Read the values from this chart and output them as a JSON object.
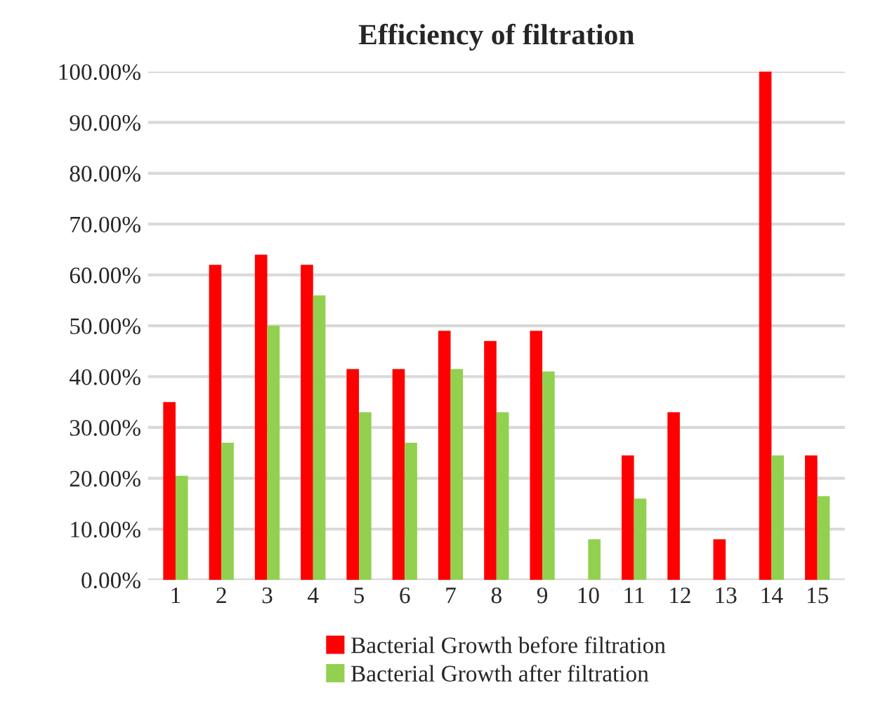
{
  "chart_data": {
    "type": "bar",
    "title": "Efficiency of filtration",
    "categories": [
      "1",
      "2",
      "3",
      "4",
      "5",
      "6",
      "7",
      "8",
      "9",
      "10",
      "11",
      "12",
      "13",
      "14",
      "15"
    ],
    "series": [
      {
        "name": "Bacterial Growth before filtration",
        "color": "#ff0000",
        "values": [
          35,
          62,
          64,
          62,
          41.5,
          41.5,
          49,
          47,
          49,
          0,
          24.5,
          33,
          8,
          100,
          24.5
        ]
      },
      {
        "name": "Bacterial Growth after filtration",
        "color": "#92d050",
        "values": [
          20.5,
          27,
          50,
          56,
          33,
          27,
          41.5,
          33,
          41,
          8,
          16,
          0,
          0,
          24.5,
          16.5
        ]
      }
    ],
    "ylim": [
      0,
      100
    ],
    "yticks": [
      {
        "value": 0,
        "label": "0.00%"
      },
      {
        "value": 10,
        "label": "10.00%"
      },
      {
        "value": 20,
        "label": "20.00%"
      },
      {
        "value": 30,
        "label": "30.00%"
      },
      {
        "value": 40,
        "label": "40.00%"
      },
      {
        "value": 50,
        "label": "50.00%"
      },
      {
        "value": 60,
        "label": "60.00%"
      },
      {
        "value": 70,
        "label": "70.00%"
      },
      {
        "value": 80,
        "label": "80.00%"
      },
      {
        "value": 90,
        "label": "90.00%"
      },
      {
        "value": 100,
        "label": "100.00%"
      }
    ],
    "grid": "y",
    "legend": "bottom"
  }
}
